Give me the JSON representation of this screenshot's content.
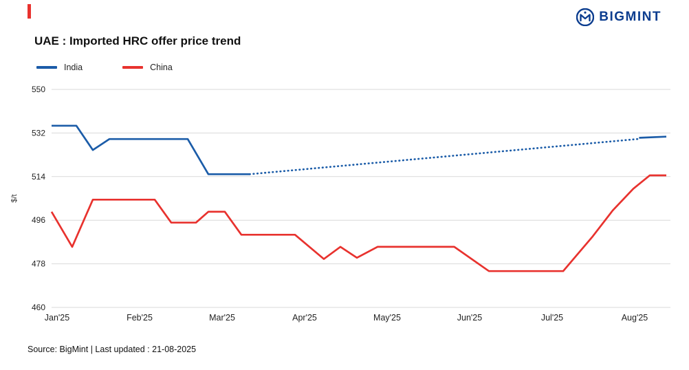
{
  "header": {
    "brand": "BIGMINT"
  },
  "footer": {
    "source": "Source: BigMint | Last updated : 21-08-2025"
  },
  "colors": {
    "india_line": "#1b5ca8",
    "china_line": "#e8322e",
    "brand_blue": "#0c3d8f",
    "accent_red": "#e8322e",
    "gridline": "#d9d9d9"
  },
  "chart_data": {
    "type": "line",
    "title": "UAE : Imported HRC offer price trend",
    "ylabel": "$/t",
    "xlabel": "",
    "ylim": [
      460,
      550
    ],
    "y_ticks": [
      550,
      532,
      514,
      496,
      478,
      460
    ],
    "categories": [
      "Jan'25",
      "Feb'25",
      "Mar'25",
      "Apr'25",
      "May'25",
      "Jun'25",
      "Jul'25",
      "Aug'25"
    ],
    "x_unit": "months after Jan'25 tick (0 = Jan'25, 1 = Feb'25, ...)",
    "grid": "horizontal",
    "legend_position": "top-left",
    "legend": [
      {
        "label": "India",
        "color": "#1b5ca8"
      },
      {
        "label": "China",
        "color": "#e8322e"
      }
    ],
    "series": [
      {
        "name": "India (actual)",
        "color": "#1b5ca8",
        "style": "solid",
        "points": [
          [
            0,
            535
          ],
          [
            0.3,
            535
          ],
          [
            0.5,
            525
          ],
          [
            0.7,
            529.5
          ],
          [
            1.65,
            529.5
          ],
          [
            1.9,
            515
          ],
          [
            2.4,
            515
          ]
        ]
      },
      {
        "name": "India (projected, dotted)",
        "color": "#1b5ca8",
        "style": "dotted",
        "points": [
          [
            2.4,
            515
          ],
          [
            7.1,
            529.5
          ]
        ]
      },
      {
        "name": "India (projected end)",
        "color": "#1b5ca8",
        "style": "solid",
        "points": [
          [
            7.12,
            530
          ],
          [
            7.45,
            530.5
          ]
        ]
      },
      {
        "name": "China",
        "color": "#e8322e",
        "style": "solid",
        "points": [
          [
            0,
            499.5
          ],
          [
            0.25,
            485
          ],
          [
            0.5,
            504.5
          ],
          [
            1.25,
            504.5
          ],
          [
            1.45,
            495
          ],
          [
            1.75,
            495
          ],
          [
            1.9,
            499.5
          ],
          [
            2.1,
            499.5
          ],
          [
            2.3,
            490
          ],
          [
            2.95,
            490
          ],
          [
            3.3,
            480
          ],
          [
            3.5,
            485
          ],
          [
            3.7,
            480.5
          ],
          [
            3.95,
            485
          ],
          [
            4.88,
            485
          ],
          [
            5.3,
            475
          ],
          [
            6.2,
            475
          ],
          [
            6.55,
            489
          ],
          [
            6.8,
            500
          ],
          [
            7.05,
            509
          ],
          [
            7.25,
            514.5
          ],
          [
            7.45,
            514.5
          ]
        ]
      }
    ]
  }
}
